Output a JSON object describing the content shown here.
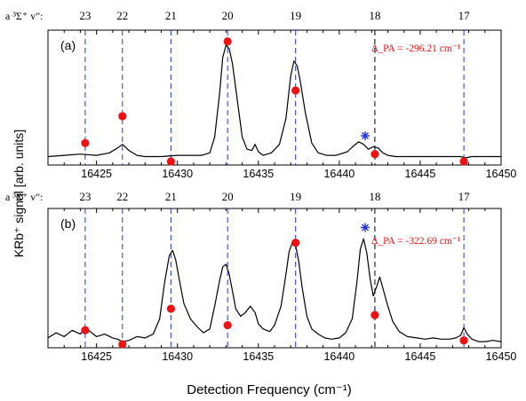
{
  "chart_data": [
    {
      "type": "line",
      "panel_label": "(a)",
      "level_prefix": "a ³Σ⁺ v\":",
      "levels": [
        {
          "label": "23",
          "x": 16424.3
        },
        {
          "label": "22",
          "x": 16426.6
        },
        {
          "label": "21",
          "x": 16429.6
        },
        {
          "label": "20",
          "x": 16433.1
        },
        {
          "label": "19",
          "x": 16437.3
        },
        {
          "label": "18",
          "x": 16442.2
        },
        {
          "label": "17",
          "x": 16447.7
        }
      ],
      "annotation": "Δ_PA = -296.21 cm⁻¹",
      "xlim": [
        16422,
        16450
      ],
      "xticks": [
        16425,
        16430,
        16435,
        16440,
        16445,
        16450
      ],
      "ylim": [
        0,
        1
      ],
      "series": [
        {
          "color": "#000000",
          "x": [
            16422,
            16423,
            16424,
            16425,
            16425.8,
            16426.3,
            16426.6,
            16427,
            16427.5,
            16428,
            16429,
            16430,
            16430.8,
            16431.5,
            16432,
            16432.3,
            16432.6,
            16432.8,
            16433,
            16433.2,
            16433.4,
            16433.7,
            16434,
            16434.3,
            16434.6,
            16434.8,
            16435,
            16435.3,
            16435.8,
            16436.3,
            16436.7,
            16437,
            16437.2,
            16437.4,
            16437.6,
            16437.9,
            16438.3,
            16438.7,
            16439.2,
            16439.8,
            16440.5,
            16440.9,
            16441.2,
            16441.5,
            16441.8,
            16442.1,
            16442.4,
            16442.7,
            16443,
            16443.5,
            16444,
            16445,
            16446,
            16447,
            16447.5,
            16447.8,
            16448.2,
            16449,
            16450
          ],
          "y": [
            0.04,
            0.05,
            0.06,
            0.05,
            0.07,
            0.11,
            0.14,
            0.09,
            0.05,
            0.04,
            0.04,
            0.05,
            0.05,
            0.05,
            0.07,
            0.2,
            0.55,
            0.85,
            0.95,
            0.92,
            0.8,
            0.5,
            0.2,
            0.1,
            0.09,
            0.14,
            0.08,
            0.05,
            0.07,
            0.14,
            0.35,
            0.7,
            0.82,
            0.78,
            0.65,
            0.4,
            0.15,
            0.07,
            0.05,
            0.05,
            0.08,
            0.13,
            0.16,
            0.14,
            0.1,
            0.12,
            0.11,
            0.07,
            0.05,
            0.04,
            0.04,
            0.04,
            0.04,
            0.04,
            0.04,
            0.03,
            0.04,
            0.04,
            0.04
          ]
        },
        {
          "marker": "circle",
          "color": "#ee1111",
          "x": [
            16424.3,
            16426.6,
            16429.6,
            16433.1,
            16437.3,
            16442.2,
            16447.7
          ],
          "y": [
            0.15,
            0.37,
            0.0,
            0.98,
            0.58,
            0.06,
            0.0
          ]
        },
        {
          "marker": "asterisk",
          "color": "#2233dd",
          "x": [
            16441.6
          ],
          "y": [
            0.21
          ]
        }
      ]
    },
    {
      "type": "line",
      "panel_label": "(b)",
      "level_prefix": "a ³Σ⁺ v\":",
      "levels": [
        {
          "label": "23",
          "x": 16424.3
        },
        {
          "label": "22",
          "x": 16426.6
        },
        {
          "label": "21",
          "x": 16429.6
        },
        {
          "label": "20",
          "x": 16433.1
        },
        {
          "label": "19",
          "x": 16437.3
        },
        {
          "label": "18",
          "x": 16442.2
        },
        {
          "label": "17",
          "x": 16447.7
        }
      ],
      "annotation": "Δ_PA = -322.69 cm⁻¹",
      "xlim": [
        16422,
        16450
      ],
      "xticks": [
        16425,
        16430,
        16435,
        16440,
        16445,
        16450
      ],
      "xlabel": "Detection Frequency (cm⁻¹)",
      "ylim": [
        0,
        1
      ],
      "series": [
        {
          "color": "#000000",
          "x": [
            16422,
            16422.5,
            16423,
            16423.5,
            16424,
            16424.3,
            16424.7,
            16425,
            16425.5,
            16426,
            16426.3,
            16426.6,
            16427,
            16427.5,
            16428,
            16428.5,
            16428.9,
            16429.2,
            16429.5,
            16429.7,
            16429.9,
            16430.1,
            16430.4,
            16430.8,
            16431.2,
            16431.6,
            16432,
            16432.3,
            16432.6,
            16432.8,
            16433,
            16433.2,
            16433.4,
            16433.6,
            16433.9,
            16434.2,
            16434.5,
            16434.8,
            16435,
            16435.3,
            16435.7,
            16436,
            16436.4,
            16436.7,
            16436.9,
            16437.1,
            16437.3,
            16437.5,
            16437.7,
            16438,
            16438.3,
            16438.7,
            16439.1,
            16439.5,
            16440,
            16440.4,
            16440.8,
            16441.1,
            16441.3,
            16441.5,
            16441.7,
            16441.9,
            16442.1,
            16442.3,
            16442.5,
            16442.7,
            16443,
            16443.3,
            16443.7,
            16444.2,
            16444.8,
            16445.3,
            16445.8,
            16446.3,
            16446.8,
            16447.2,
            16447.5,
            16447.7,
            16447.9,
            16448.2,
            16448.6,
            16449,
            16449.5,
            16450
          ],
          "y": [
            0.05,
            0.09,
            0.06,
            0.11,
            0.08,
            0.13,
            0.09,
            0.06,
            0.08,
            0.05,
            0.04,
            0.02,
            0.03,
            0.06,
            0.05,
            0.08,
            0.2,
            0.48,
            0.7,
            0.74,
            0.66,
            0.52,
            0.32,
            0.2,
            0.14,
            0.09,
            0.12,
            0.3,
            0.5,
            0.61,
            0.63,
            0.55,
            0.42,
            0.28,
            0.22,
            0.25,
            0.3,
            0.25,
            0.16,
            0.12,
            0.1,
            0.15,
            0.3,
            0.55,
            0.73,
            0.8,
            0.78,
            0.65,
            0.45,
            0.22,
            0.12,
            0.08,
            0.05,
            0.04,
            0.05,
            0.09,
            0.2,
            0.5,
            0.75,
            0.83,
            0.72,
            0.52,
            0.38,
            0.45,
            0.53,
            0.44,
            0.3,
            0.18,
            0.1,
            0.06,
            0.05,
            0.04,
            0.05,
            0.04,
            0.04,
            0.05,
            0.07,
            0.13,
            0.08,
            0.04,
            0.02,
            0.02,
            0.03,
            0.02
          ]
        },
        {
          "marker": "circle",
          "color": "#ee1111",
          "x": [
            16424.3,
            16426.6,
            16429.6,
            16433.1,
            16437.3,
            16442.2,
            16447.7
          ],
          "y": [
            0.11,
            0.0,
            0.28,
            0.15,
            0.8,
            0.23,
            0.03
          ]
        },
        {
          "marker": "asterisk",
          "color": "#2233dd",
          "x": [
            16441.6
          ],
          "y": [
            0.92
          ]
        }
      ]
    }
  ],
  "ylabel": "KRb⁺ signal [arb. units]",
  "colors": {
    "trace": "#000000",
    "dashed_lines": "#2233dd",
    "circles": "#ee1111",
    "asterisk": "#2233dd",
    "annotation": "#ee1111"
  }
}
